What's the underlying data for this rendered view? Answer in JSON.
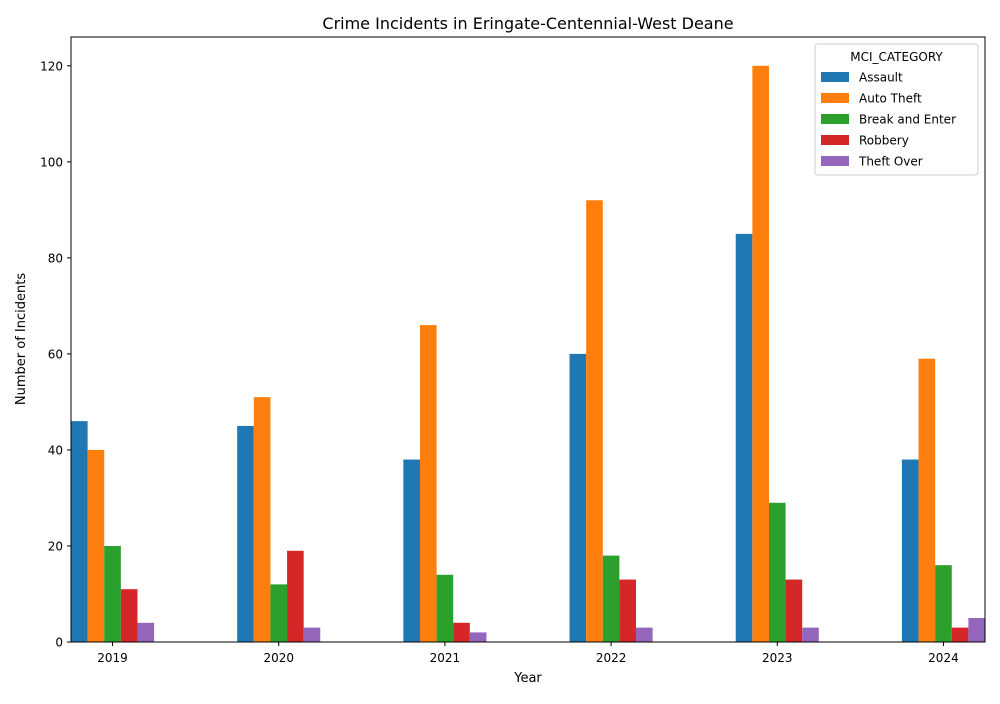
{
  "chart_data": {
    "type": "bar",
    "title": "Crime Incidents in Eringate-Centennial-West Deane",
    "xlabel": "Year",
    "ylabel": "Number of Incidents",
    "categories": [
      "2019",
      "2020",
      "2021",
      "2022",
      "2023",
      "2024"
    ],
    "ylim": [
      0,
      126
    ],
    "yticks": [
      0,
      20,
      40,
      60,
      80,
      100,
      120
    ],
    "grid": false,
    "legend": {
      "title": "MCI_CATEGORY",
      "placement": "top-right"
    },
    "series": [
      {
        "name": "Assault",
        "color": "#1f77b4",
        "values": [
          46,
          45,
          38,
          60,
          85,
          38
        ]
      },
      {
        "name": "Auto Theft",
        "color": "#ff7f0e",
        "values": [
          40,
          51,
          66,
          92,
          120,
          59
        ]
      },
      {
        "name": "Break and Enter",
        "color": "#2ca02c",
        "values": [
          20,
          12,
          14,
          18,
          29,
          16
        ]
      },
      {
        "name": "Robbery",
        "color": "#d62728",
        "values": [
          11,
          19,
          4,
          13,
          13,
          3
        ]
      },
      {
        "name": "Theft Over",
        "color": "#9467bd",
        "values": [
          4,
          3,
          2,
          3,
          3,
          5
        ]
      }
    ]
  }
}
